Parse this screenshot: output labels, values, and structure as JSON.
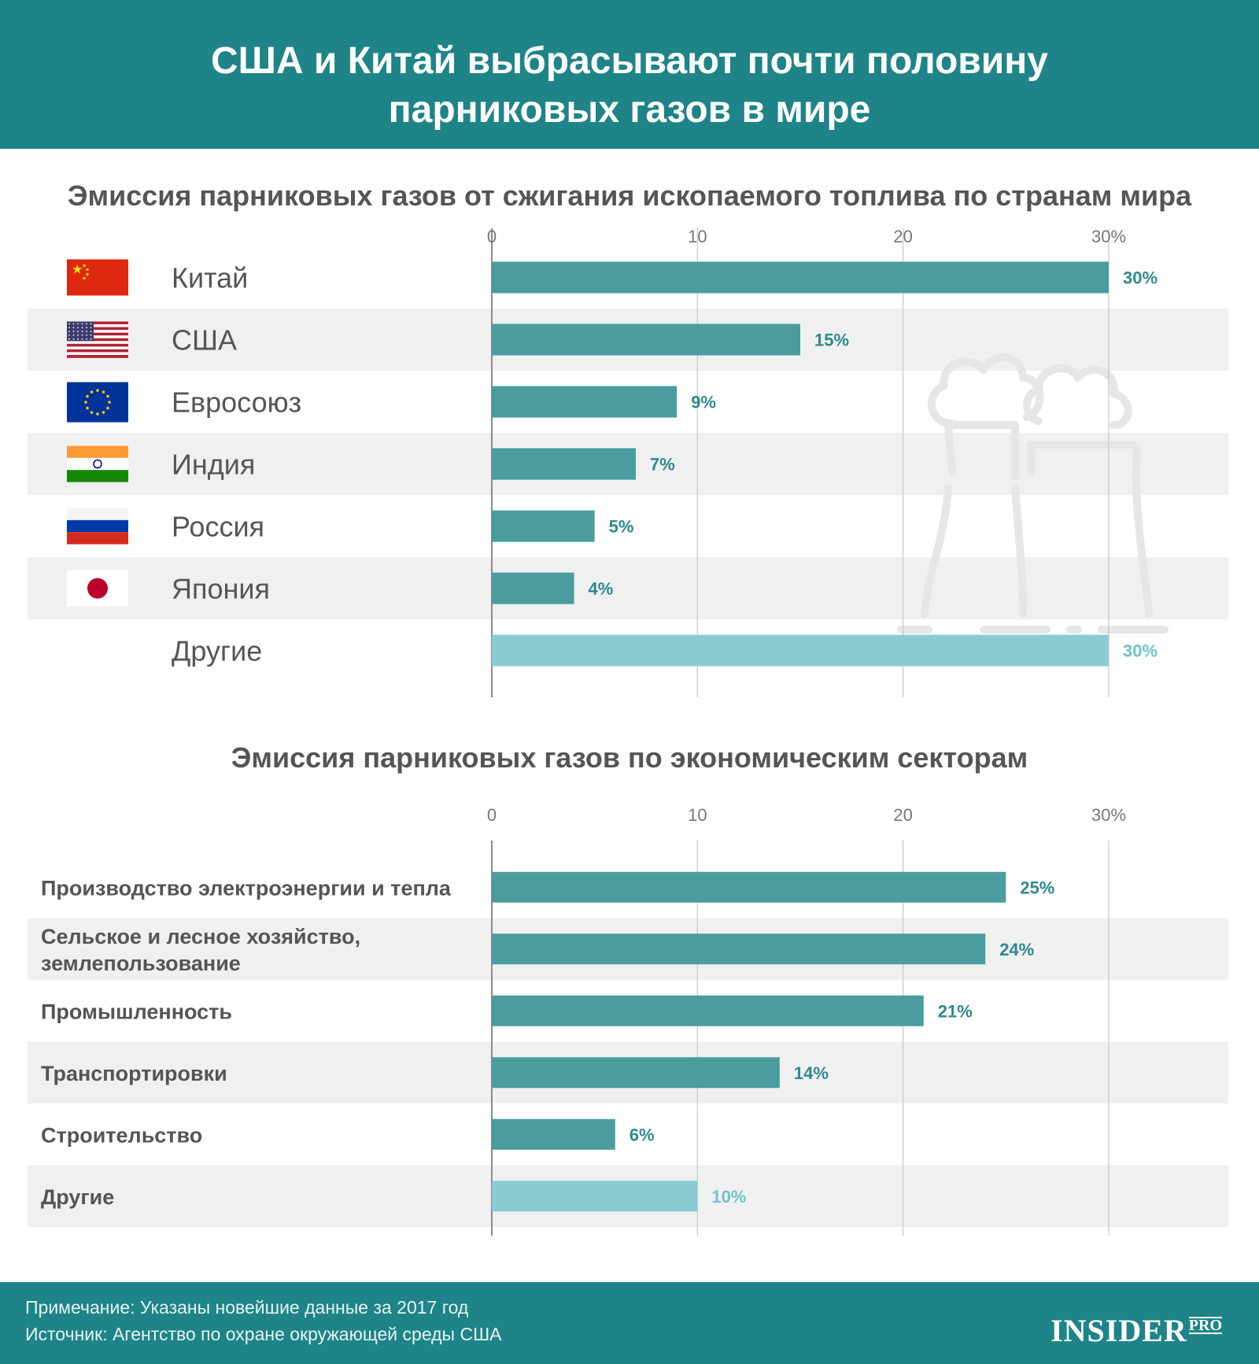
{
  "header": {
    "title_line1": "США и Китай выбрасывают почти половину",
    "title_line2": "парниковых газов в мире"
  },
  "colors": {
    "header_bg": "#1e8487",
    "bar": "#4a9c9e",
    "bar_other": "#8accd3",
    "label_value": "#2e8a8d",
    "label_value_other": "#6fc3cc",
    "row_stripe": "#f0f0f0",
    "grid": "#c8c8c8"
  },
  "chart_data": [
    {
      "type": "bar",
      "orientation": "horizontal",
      "title": "Эмиссия парниковых газов от сжигания ископаемого топлива по странам мира",
      "xlim": [
        0,
        30
      ],
      "ticks": [
        "0",
        "10",
        "20",
        "30%"
      ],
      "grid": true,
      "categories": [
        "Китай",
        "США",
        "Евросоюз",
        "Индия",
        "Россия",
        "Япония",
        "Другие"
      ],
      "flags": [
        "china-flag-icon",
        "usa-flag-icon",
        "eu-flag-icon",
        "india-flag-icon",
        "russia-flag-icon",
        "japan-flag-icon",
        ""
      ],
      "values": [
        30,
        15,
        9,
        7,
        5,
        4,
        30
      ],
      "value_labels": [
        "30%",
        "15%",
        "9%",
        "7%",
        "5%",
        "4%",
        "30%"
      ],
      "highlight_last": true
    },
    {
      "type": "bar",
      "orientation": "horizontal",
      "title": "Эмиссия парниковых газов по экономическим секторам",
      "xlim": [
        0,
        30
      ],
      "ticks": [
        "0",
        "10",
        "20",
        "30%"
      ],
      "grid": true,
      "categories": [
        [
          "Производство электроэнергии и тепла"
        ],
        [
          "Сельское и лесное хозяйство,",
          "землепользование"
        ],
        [
          "Промышленность"
        ],
        [
          "Транспортировки"
        ],
        [
          "Строительство"
        ],
        [
          "Другие"
        ]
      ],
      "values": [
        25,
        24,
        21,
        14,
        6,
        10
      ],
      "value_labels": [
        "25%",
        "24%",
        "21%",
        "14%",
        "6%",
        "10%"
      ],
      "highlight_last": true
    }
  ],
  "footer": {
    "note": "Примечание: Указаны новейшие данные за 2017 год",
    "source": "Источник: Агентство по охране окружающей среды США",
    "logo_main": "INSIDER",
    "logo_sub": "PRO"
  }
}
